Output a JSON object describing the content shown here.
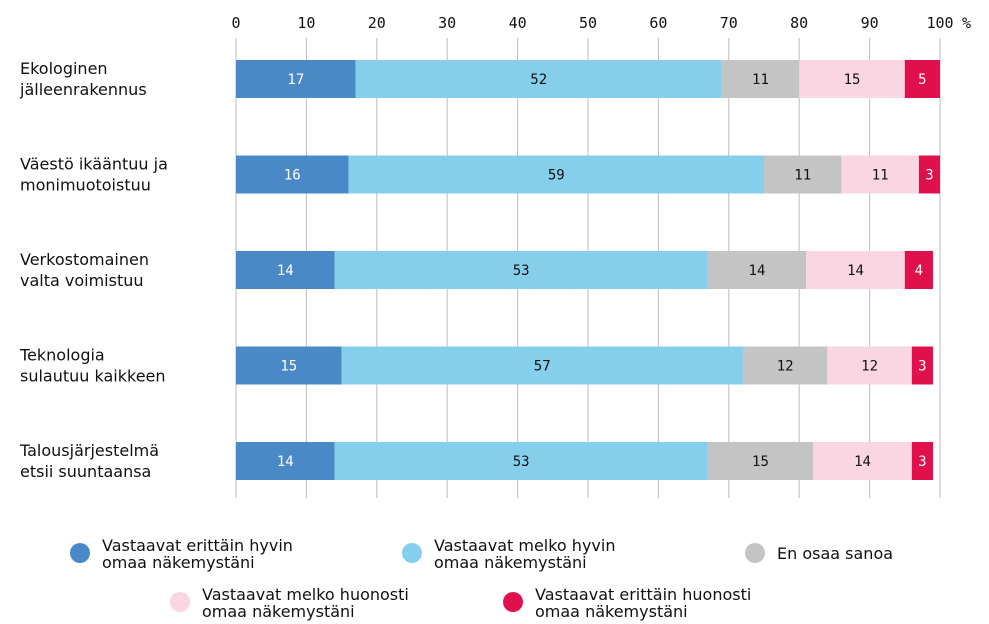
{
  "chart_data": {
    "type": "bar",
    "orientation": "horizontal",
    "stacked": true,
    "categories": [
      [
        "Ekologinen",
        "jälleenrakennus"
      ],
      [
        "Väestö ikääntuu ja",
        "monimuotoistuu"
      ],
      [
        "Verkostomainen",
        "valta voimistuu"
      ],
      [
        "Teknologia",
        "sulautuu kaikkeen"
      ],
      [
        "Talousjärjestelmä",
        "etsii suuntaansa"
      ]
    ],
    "series": [
      {
        "name": "Vastaavat erittäin hyvin omaa näkemystäni",
        "color": "#4a89c8",
        "label_color": "#ffffff",
        "values": [
          17,
          16,
          14,
          15,
          14
        ]
      },
      {
        "name": "Vastaavat melko hyvin omaa näkemystäni",
        "color": "#85cfec",
        "label_color": "#111111",
        "values": [
          52,
          59,
          53,
          57,
          53
        ]
      },
      {
        "name": "En osaa sanoa",
        "color": "#c4c4c4",
        "label_color": "#111111",
        "values": [
          11,
          11,
          14,
          12,
          15
        ]
      },
      {
        "name": "Vastaavat melko huonosti omaa näkemystäni",
        "color": "#f9d6e1",
        "label_color": "#111111",
        "values": [
          15,
          11,
          14,
          12,
          14
        ]
      },
      {
        "name": "Vastaavat erittäin huonosti omaa näkemystäni",
        "color": "#e0104d",
        "label_color": "#ffffff",
        "values": [
          5,
          3,
          4,
          3,
          3
        ]
      }
    ],
    "xlim": [
      0,
      100
    ],
    "xticks": [
      0,
      10,
      20,
      30,
      40,
      50,
      60,
      70,
      80,
      90,
      100
    ],
    "x_unit": "%",
    "xaxis_position": "top",
    "grid": true,
    "legend_position": "bottom"
  },
  "legend": {
    "items": [
      {
        "line1": "Vastaavat erittäin hyvin",
        "line2": "omaa näkemystäni",
        "color": "#4a89c8"
      },
      {
        "line1": "Vastaavat melko hyvin",
        "line2": "omaa näkemystäni",
        "color": "#85cfec"
      },
      {
        "line1": "En osaa sanoa",
        "line2": "",
        "color": "#c4c4c4"
      },
      {
        "line1": "Vastaavat melko huonosti",
        "line2": "omaa näkemystäni",
        "color": "#f9d6e1"
      },
      {
        "line1": "Vastaavat erittäin huonosti",
        "line2": "omaa näkemystäni",
        "color": "#e0104d"
      }
    ]
  }
}
